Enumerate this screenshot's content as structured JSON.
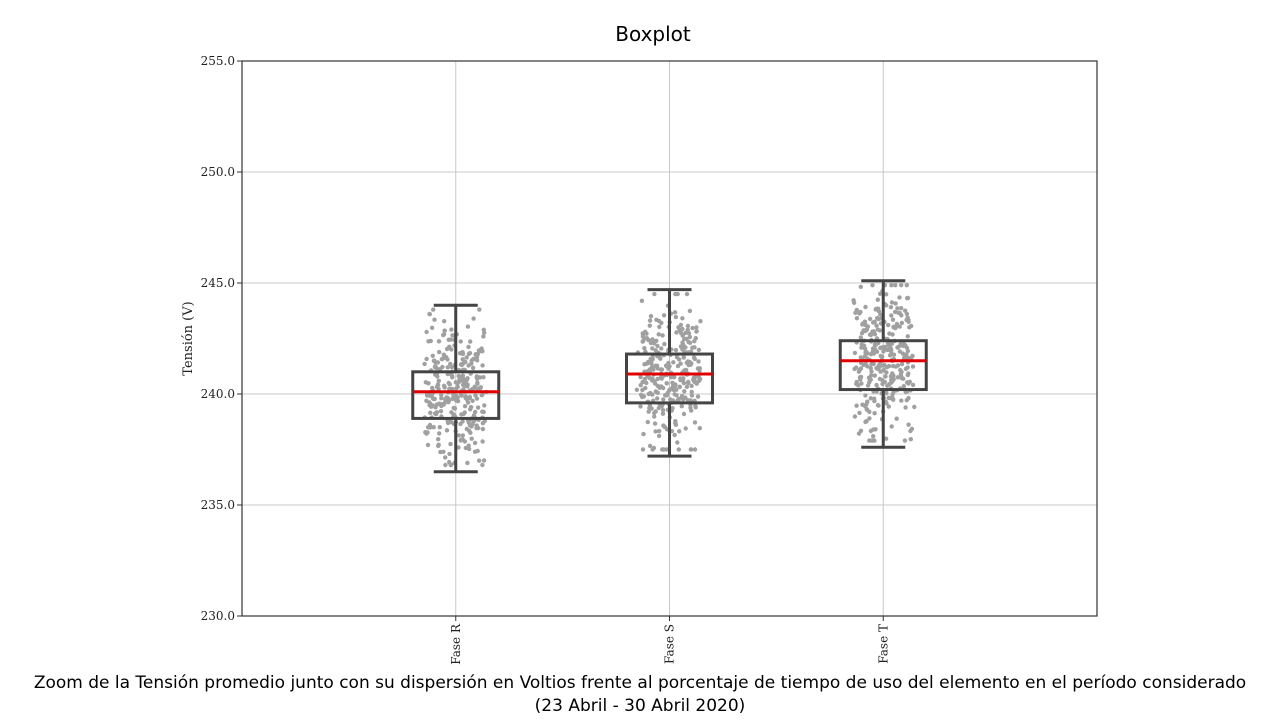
{
  "chart_data": {
    "type": "box",
    "title": "Boxplot",
    "ylabel": "Tensión (V)",
    "xlabel": "",
    "ylim": [
      230.0,
      255.0
    ],
    "yticks": [
      "230.0",
      "235.0",
      "240.0",
      "245.0",
      "250.0",
      "255.0"
    ],
    "categories": [
      "Fase R",
      "Fase S",
      "Fase T"
    ],
    "grid": true,
    "boxes": [
      {
        "category": "Fase R",
        "whisker_low": 236.5,
        "q1": 238.9,
        "median": 240.1,
        "q3": 241.0,
        "whisker_high": 244.0
      },
      {
        "category": "Fase S",
        "whisker_low": 237.2,
        "q1": 239.6,
        "median": 240.9,
        "q3": 241.8,
        "whisker_high": 244.7
      },
      {
        "category": "Fase T",
        "whisker_low": 237.6,
        "q1": 240.2,
        "median": 241.5,
        "q3": 242.4,
        "whisker_high": 245.1
      }
    ],
    "points_shown": "jittered scatter of individual readings per phase",
    "colors": {
      "box": "#444444",
      "median": "#e00000",
      "points": "#a0a0a0",
      "grid": "#c8c8c8"
    }
  },
  "caption": {
    "line1": "Zoom de la Tensión promedio junto con su dispersión en Voltios frente al porcentaje de tiempo de uso del elemento en el período considerado",
    "line2": "(23 Abril - 30 Abril 2020)"
  }
}
